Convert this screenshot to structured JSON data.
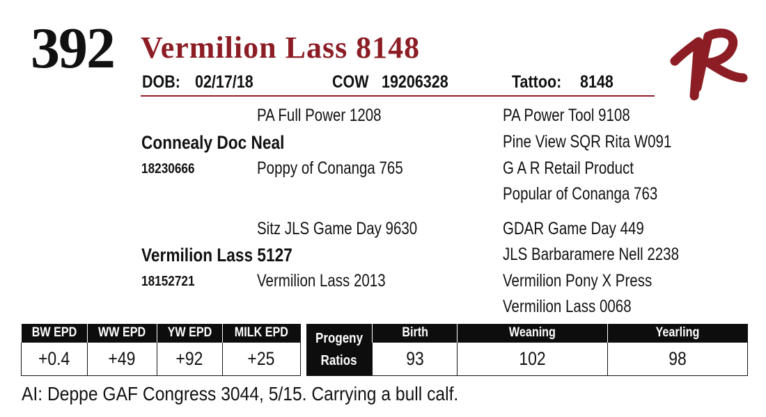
{
  "lot": {
    "number": "392",
    "name": "Vermilion Lass 8148",
    "dob_label": "DOB:",
    "dob": "02/17/18",
    "type": "COW",
    "registration": "19206328",
    "tattoo_label": "Tattoo:",
    "tattoo": "8148"
  },
  "colors": {
    "accent": "#8c1d25",
    "header_bg": "#0d0d0d"
  },
  "pedigree": {
    "sire": {
      "name": "Connealy Doc Neal",
      "reg": "18230666"
    },
    "sire_sire": "PA Full Power 1208",
    "sire_dam": "Poppy of Conanga 765",
    "sss": "PA Power Tool 9108",
    "ssd": "Pine View SQR Rita W091",
    "sds": "G A R Retail Product",
    "sdd": "Popular of Conanga 763",
    "dam": {
      "name": "Vermilion Lass 5127",
      "reg": "18152721"
    },
    "dam_sire": "Sitz JLS Game Day 9630",
    "dam_dam": "Vermilion Lass 2013",
    "dss": "GDAR Game Day 449",
    "dsd": "JLS Barbaramere Nell 2238",
    "dds": "Vermilion Pony X Press",
    "ddd": "Vermilion Lass 0068"
  },
  "epd": {
    "headers": [
      "BW EPD",
      "WW EPD",
      "YW EPD",
      "MILK EPD"
    ],
    "values": [
      "+0.4",
      "+49",
      "+92",
      "+25"
    ]
  },
  "progeny": {
    "label_line1": "Progeny",
    "label_line2": "Ratios",
    "headers": [
      "Birth",
      "Weaning",
      "Yearling"
    ],
    "values": [
      "93",
      "102",
      "98"
    ]
  },
  "note": "AI:  Deppe GAF Congress 3044, 5/15.  Carrying a bull calf.",
  "logo": {
    "icon": "vr-brand-logo"
  }
}
